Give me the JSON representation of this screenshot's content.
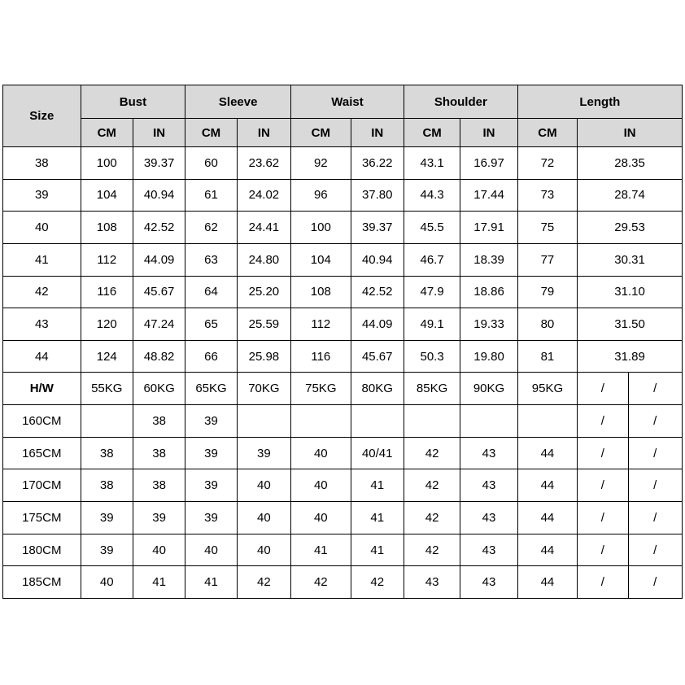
{
  "colors": {
    "border": "#000000",
    "header_bg": "#d9d9d9",
    "bust_cm_fill": "#dce6f1",
    "sleeve_cm_fill": "#fce4d6",
    "waist_cm_fill": "#ffedbc",
    "shoulder_cm_fill": "#e7e6e6",
    "length_cm_fill": "#e2efda",
    "row_gray_fill": "#d9d9d9",
    "row_blue_fill": "#bdd7ee",
    "row_orange_fill": "#f8cbad"
  },
  "table": {
    "header": {
      "size_label": "Size",
      "groups": [
        {
          "label": "Bust"
        },
        {
          "label": "Sleeve"
        },
        {
          "label": "Waist"
        },
        {
          "label": "Shoulder"
        },
        {
          "label": "Length"
        }
      ],
      "unit_cm": "CM",
      "unit_in": "IN"
    },
    "size_rows": [
      {
        "size": "38",
        "bust_cm": "100",
        "bust_in": "39.37",
        "sleeve_cm": "60",
        "sleeve_in": "23.62",
        "waist_cm": "92",
        "waist_in": "36.22",
        "shoulder_cm": "43.1",
        "shoulder_in": "16.97",
        "length_cm": "72",
        "length_in": "28.35"
      },
      {
        "size": "39",
        "bust_cm": "104",
        "bust_in": "40.94",
        "sleeve_cm": "61",
        "sleeve_in": "24.02",
        "waist_cm": "96",
        "waist_in": "37.80",
        "shoulder_cm": "44.3",
        "shoulder_in": "17.44",
        "length_cm": "73",
        "length_in": "28.74"
      },
      {
        "size": "40",
        "bust_cm": "108",
        "bust_in": "42.52",
        "sleeve_cm": "62",
        "sleeve_in": "24.41",
        "waist_cm": "100",
        "waist_in": "39.37",
        "shoulder_cm": "45.5",
        "shoulder_in": "17.91",
        "length_cm": "75",
        "length_in": "29.53"
      },
      {
        "size": "41",
        "bust_cm": "112",
        "bust_in": "44.09",
        "sleeve_cm": "63",
        "sleeve_in": "24.80",
        "waist_cm": "104",
        "waist_in": "40.94",
        "shoulder_cm": "46.7",
        "shoulder_in": "18.39",
        "length_cm": "77",
        "length_in": "30.31"
      },
      {
        "size": "42",
        "bust_cm": "116",
        "bust_in": "45.67",
        "sleeve_cm": "64",
        "sleeve_in": "25.20",
        "waist_cm": "108",
        "waist_in": "42.52",
        "shoulder_cm": "47.9",
        "shoulder_in": "18.86",
        "length_cm": "79",
        "length_in": "31.10"
      },
      {
        "size": "43",
        "bust_cm": "120",
        "bust_in": "47.24",
        "sleeve_cm": "65",
        "sleeve_in": "25.59",
        "waist_cm": "112",
        "waist_in": "44.09",
        "shoulder_cm": "49.1",
        "shoulder_in": "19.33",
        "length_cm": "80",
        "length_in": "31.50"
      },
      {
        "size": "44",
        "bust_cm": "124",
        "bust_in": "48.82",
        "sleeve_cm": "66",
        "sleeve_in": "25.98",
        "waist_cm": "116",
        "waist_in": "45.67",
        "shoulder_cm": "50.3",
        "shoulder_in": "19.80",
        "length_cm": "81",
        "length_in": "31.89"
      }
    ],
    "hw_row": {
      "label": "H/W",
      "cells": [
        "55KG",
        "60KG",
        "65KG",
        "70KG",
        "75KG",
        "80KG",
        "85KG",
        "90KG",
        "95KG"
      ],
      "slash": "/"
    },
    "height_rows": [
      {
        "label": "160CM",
        "highlight": "none",
        "cells": [
          "",
          "38",
          "39",
          "",
          "",
          "",
          "",
          "",
          ""
        ],
        "slash": "/"
      },
      {
        "label": "165CM",
        "highlight": "gray",
        "cells": [
          "38",
          "38",
          "39",
          "39",
          "40",
          "40/41",
          "42",
          "43",
          "44"
        ],
        "slash": "/"
      },
      {
        "label": "170CM",
        "highlight": "none",
        "cells": [
          "38",
          "38",
          "39",
          "40",
          "40",
          "41",
          "42",
          "43",
          "44"
        ],
        "slash": "/"
      },
      {
        "label": "175CM",
        "highlight": "blue",
        "cells": [
          "39",
          "39",
          "39",
          "40",
          "40",
          "41",
          "42",
          "43",
          "44"
        ],
        "slash": "/"
      },
      {
        "label": "180CM",
        "highlight": "none",
        "cells": [
          "39",
          "40",
          "40",
          "40",
          "41",
          "41",
          "42",
          "43",
          "44"
        ],
        "slash": "/"
      },
      {
        "label": "185CM",
        "highlight": "orange",
        "cells": [
          "40",
          "41",
          "41",
          "42",
          "42",
          "42",
          "43",
          "43",
          "44"
        ],
        "slash": "/"
      }
    ]
  }
}
